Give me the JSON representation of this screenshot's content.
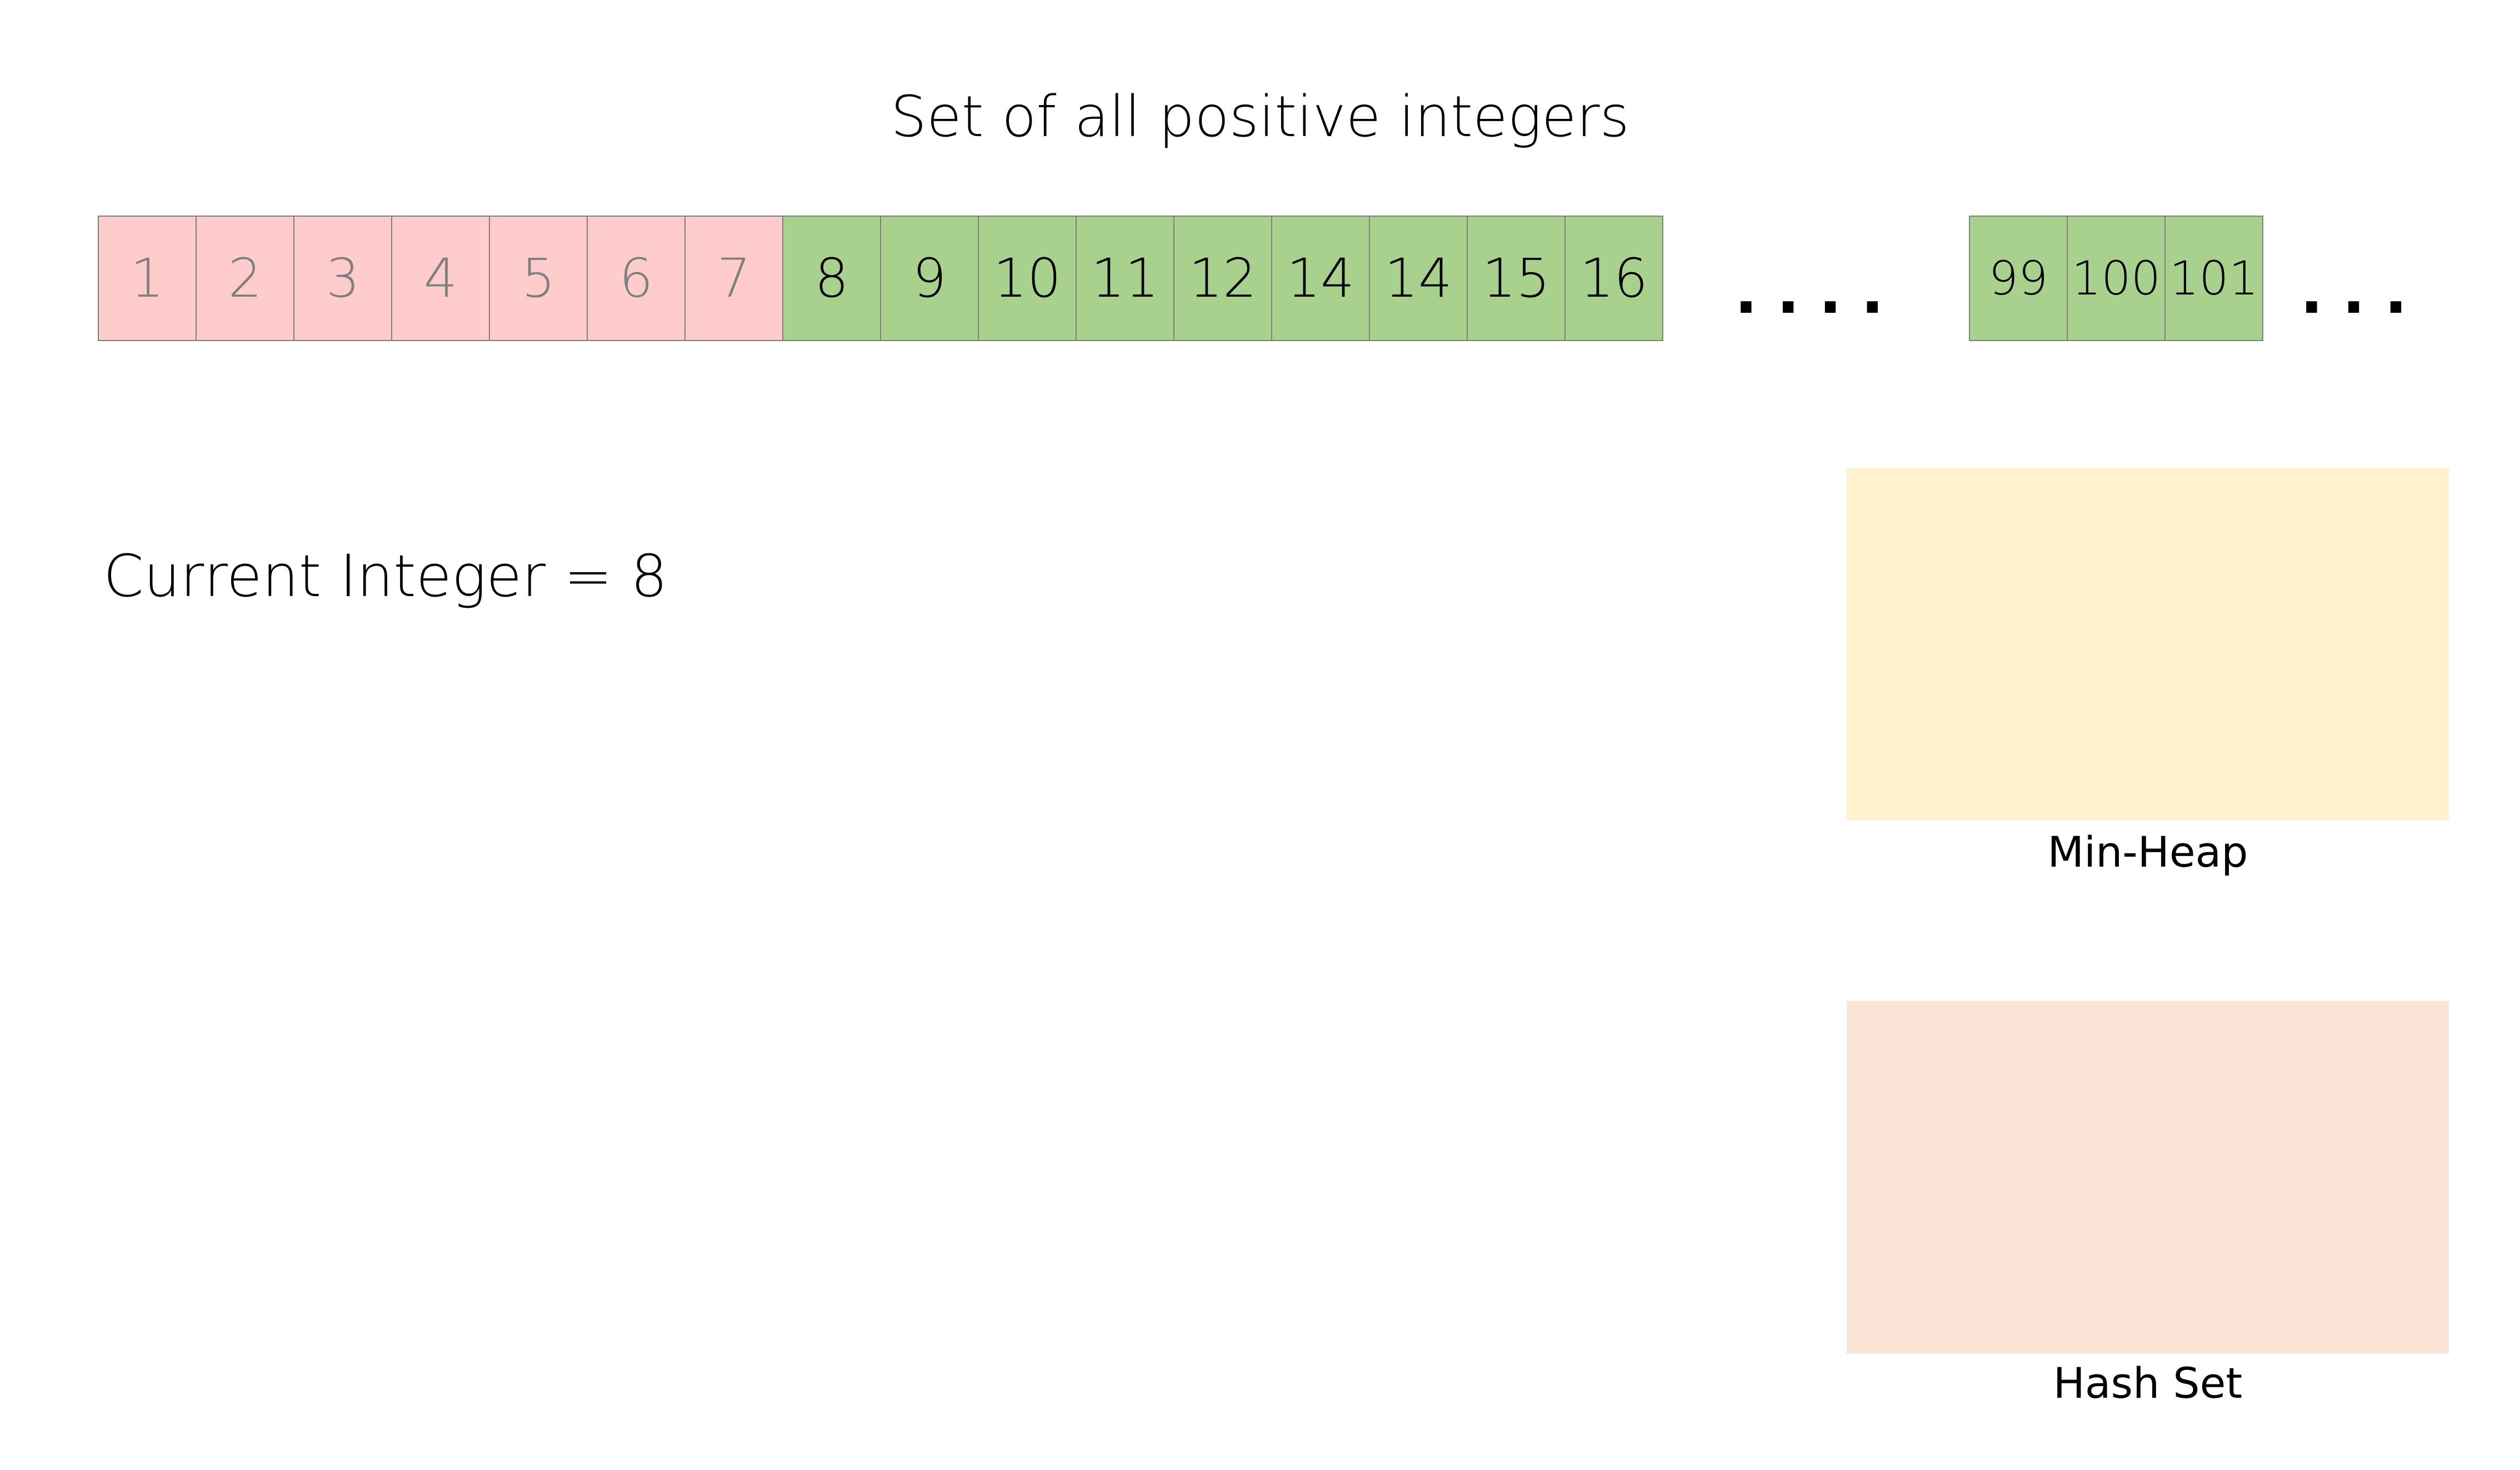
{
  "title": "Set of all positive integers",
  "sequence": {
    "visited": [
      "1",
      "2",
      "3",
      "4",
      "5",
      "6",
      "7"
    ],
    "pending": [
      "8",
      "9",
      "10",
      "11",
      "12",
      "14",
      "14",
      "15",
      "16"
    ],
    "ellipsis_middle": "....",
    "tail": [
      "99",
      "100",
      "101"
    ],
    "ellipsis_end": "..."
  },
  "current_integer_label": "Current Integer = 8",
  "structures": {
    "min_heap_label": "Min-Heap",
    "hash_set_label": "Hash Set"
  },
  "colors": {
    "visited_fill": "#ffcccc",
    "pending_fill": "#a9d18e",
    "min_heap_fill": "#fff2cc",
    "hash_set_fill": "#fbe5d6",
    "cell_border": "#7f7f7f"
  }
}
